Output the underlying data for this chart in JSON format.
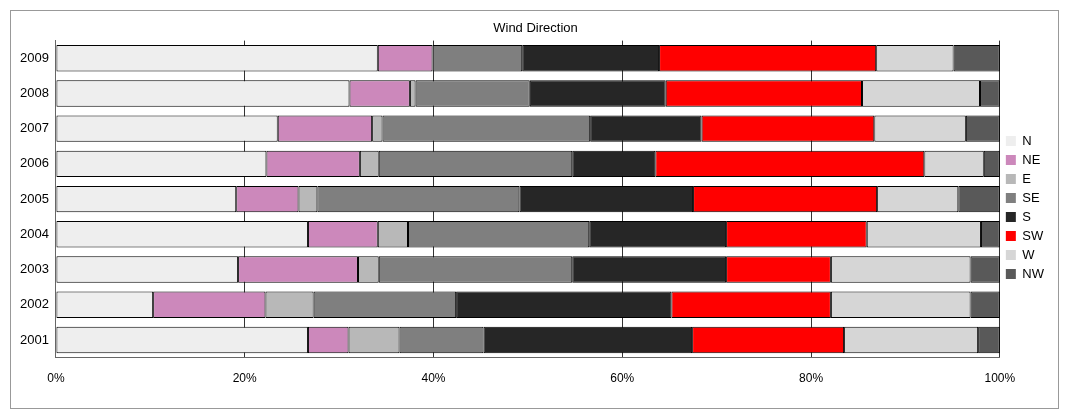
{
  "chart_data": {
    "type": "bar",
    "title": "Wind Direction",
    "orientation": "horizontal",
    "stacked": true,
    "categories": [
      "2009",
      "2008",
      "2007",
      "2006",
      "2005",
      "2004",
      "2003",
      "2002",
      "2001"
    ],
    "series": [
      {
        "name": "N",
        "color": "#eeeeee",
        "values": [
          34.1,
          31.1,
          23.5,
          22.3,
          19.1,
          26.7,
          19.3,
          10.3,
          26.7
        ]
      },
      {
        "name": "NE",
        "color": "#cc88bb",
        "values": [
          5.8,
          6.4,
          10.0,
          9.9,
          6.6,
          7.4,
          12.7,
          11.9,
          4.3
        ]
      },
      {
        "name": "E",
        "color": "#b8b8b8",
        "values": [
          0,
          0.6,
          1.1,
          2.0,
          2.0,
          3.2,
          2.2,
          5.1,
          5.4
        ]
      },
      {
        "name": "SE",
        "color": "#7f7f7f",
        "values": [
          9.5,
          12.1,
          22.0,
          20.5,
          21.4,
          19.2,
          20.5,
          15.1,
          8.9
        ]
      },
      {
        "name": "S",
        "color": "#262626",
        "values": [
          14.5,
          14.4,
          11.8,
          8.8,
          18.4,
          14.5,
          16.3,
          22.8,
          22.1
        ]
      },
      {
        "name": "SW",
        "color": "#ff0000",
        "values": [
          23.0,
          20.8,
          18.3,
          28.5,
          19.5,
          14.9,
          11.1,
          16.9,
          16.1
        ]
      },
      {
        "name": "W",
        "color": "#d6d6d6",
        "values": [
          8.2,
          12.5,
          9.7,
          6.3,
          8.6,
          12.1,
          14.8,
          14.8,
          14.2
        ]
      },
      {
        "name": "NW",
        "color": "#595959",
        "values": [
          4.9,
          2.1,
          3.6,
          1.7,
          4.4,
          2.0,
          3.1,
          3.1,
          2.3
        ]
      }
    ],
    "xlim": [
      0,
      100
    ],
    "xticks": [
      {
        "value": 0,
        "label": "0%"
      },
      {
        "value": 20,
        "label": "20%"
      },
      {
        "value": 40,
        "label": "40%"
      },
      {
        "value": 60,
        "label": "60%"
      },
      {
        "value": 80,
        "label": "80%"
      },
      {
        "value": 100,
        "label": "100%"
      }
    ],
    "grid": "x",
    "legend": "right"
  }
}
